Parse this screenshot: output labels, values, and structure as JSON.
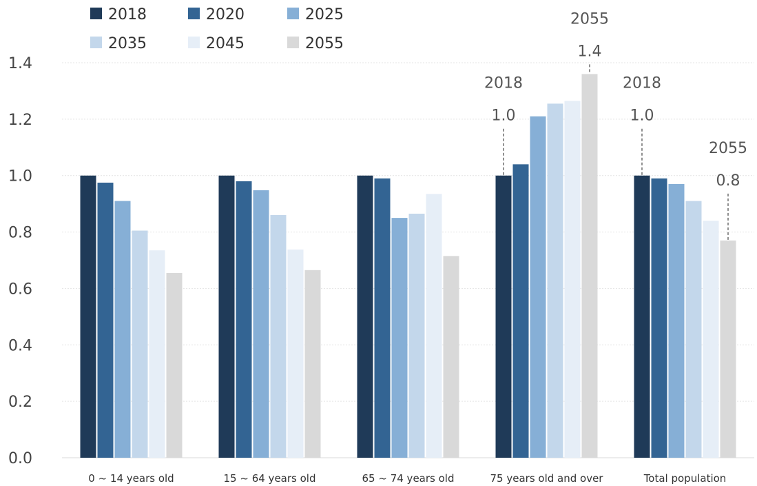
{
  "chart_data": {
    "type": "bar",
    "title": "",
    "xlabel": "",
    "ylabel": "",
    "ylim": [
      0,
      1.4
    ],
    "yticks": [
      "0.0",
      "0.2",
      "0.4",
      "0.6",
      "0.8",
      "1.0",
      "1.2",
      "1.4"
    ],
    "categories": [
      "0 ~ 14 years old",
      "15 ~ 64 years old",
      "65 ~ 74 years old",
      "75 years old and over",
      "Total population"
    ],
    "series": [
      {
        "name": "2018",
        "color": "#1f3a58",
        "values": [
          1.0,
          1.0,
          1.0,
          1.0,
          1.0
        ]
      },
      {
        "name": "2020",
        "color": "#336493",
        "values": [
          0.975,
          0.98,
          0.99,
          1.04,
          0.99
        ]
      },
      {
        "name": "2025",
        "color": "#86afd6",
        "values": [
          0.91,
          0.948,
          0.85,
          1.21,
          0.97
        ]
      },
      {
        "name": "2035",
        "color": "#c3d7eb",
        "values": [
          0.805,
          0.86,
          0.865,
          1.255,
          0.91
        ]
      },
      {
        "name": "2045",
        "color": "#e6eef7",
        "values": [
          0.735,
          0.738,
          0.935,
          1.265,
          0.84
        ]
      },
      {
        "name": "2055",
        "color": "#d9d9d9",
        "values": [
          0.655,
          0.665,
          0.715,
          1.36,
          0.77
        ]
      }
    ],
    "legend_position": "top-left",
    "grid": true,
    "annotations": [
      {
        "year": "2018",
        "value": "1.0",
        "category_index": 3,
        "series_index": 0
      },
      {
        "year": "2055",
        "value": "1.4",
        "category_index": 3,
        "series_index": 5
      },
      {
        "year": "2018",
        "value": "1.0",
        "category_index": 4,
        "series_index": 0
      },
      {
        "year": "2055",
        "value": "0.8",
        "category_index": 4,
        "series_index": 5
      }
    ]
  }
}
